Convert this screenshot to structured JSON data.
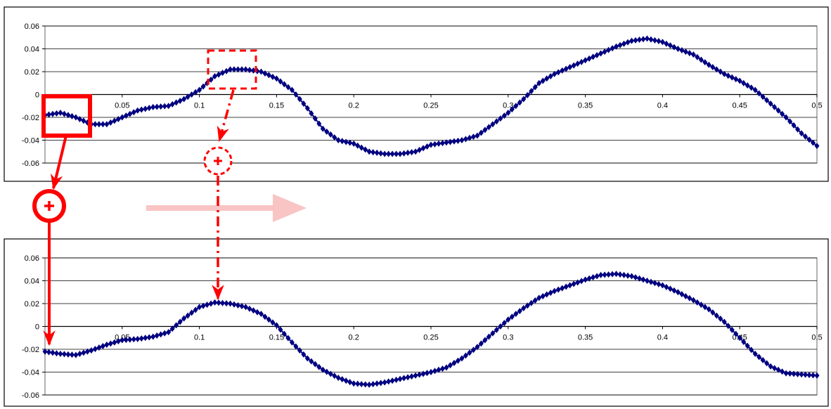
{
  "chart_data": [
    {
      "type": "line",
      "title": "",
      "xlabel": "",
      "ylabel": "",
      "xlim": [
        0,
        0.5
      ],
      "ylim": [
        -0.06,
        0.06
      ],
      "x_ticks": [
        "0.05",
        "0.1",
        "0.15",
        "0.2",
        "0.25",
        "0.3",
        "0.35",
        "0.4",
        "0.45",
        "0.5"
      ],
      "y_ticks": [
        "0.06",
        "0.04",
        "0.02",
        "0",
        "-0.02",
        "-0.04",
        "-0.06"
      ],
      "grid": true,
      "legend": "none",
      "series": [
        {
          "color": "#000080",
          "marker": "diamond",
          "x": [
            0.0,
            0.01,
            0.02,
            0.03,
            0.04,
            0.05,
            0.06,
            0.07,
            0.08,
            0.09,
            0.1,
            0.11,
            0.12,
            0.13,
            0.14,
            0.15,
            0.16,
            0.17,
            0.18,
            0.19,
            0.2,
            0.21,
            0.22,
            0.23,
            0.24,
            0.25,
            0.26,
            0.27,
            0.28,
            0.29,
            0.3,
            0.31,
            0.32,
            0.33,
            0.34,
            0.35,
            0.36,
            0.37,
            0.38,
            0.39,
            0.4,
            0.41,
            0.42,
            0.43,
            0.44,
            0.45,
            0.46,
            0.47,
            0.48,
            0.49,
            0.5
          ],
          "y": [
            -0.018,
            -0.016,
            -0.02,
            -0.026,
            -0.026,
            -0.02,
            -0.014,
            -0.011,
            -0.01,
            -0.004,
            0.004,
            0.016,
            0.022,
            0.022,
            0.02,
            0.014,
            0.004,
            -0.012,
            -0.03,
            -0.04,
            -0.043,
            -0.05,
            -0.052,
            -0.052,
            -0.05,
            -0.044,
            -0.042,
            -0.04,
            -0.036,
            -0.026,
            -0.016,
            -0.004,
            0.01,
            0.018,
            0.024,
            0.03,
            0.036,
            0.042,
            0.047,
            0.049,
            0.046,
            0.04,
            0.035,
            0.026,
            0.018,
            0.012,
            0.004,
            -0.008,
            -0.02,
            -0.034,
            -0.045
          ]
        }
      ]
    },
    {
      "type": "line",
      "title": "",
      "xlabel": "",
      "ylabel": "",
      "xlim": [
        0,
        0.5
      ],
      "ylim": [
        -0.06,
        0.06
      ],
      "x_ticks": [
        "0.05",
        "0.1",
        "0.15",
        "0.2",
        "0.25",
        "0.3",
        "0.35",
        "0.4",
        "0.45",
        "0.5"
      ],
      "y_ticks": [
        "0.06",
        "0.04",
        "0.02",
        "0",
        "-0.02",
        "-0.04",
        "-0.06"
      ],
      "grid": true,
      "legend": "none",
      "series": [
        {
          "color": "#000080",
          "marker": "diamond",
          "x": [
            0.0,
            0.01,
            0.02,
            0.03,
            0.04,
            0.05,
            0.06,
            0.07,
            0.08,
            0.09,
            0.1,
            0.11,
            0.12,
            0.13,
            0.14,
            0.15,
            0.16,
            0.17,
            0.18,
            0.19,
            0.2,
            0.21,
            0.22,
            0.23,
            0.24,
            0.25,
            0.26,
            0.27,
            0.28,
            0.29,
            0.3,
            0.31,
            0.32,
            0.33,
            0.34,
            0.35,
            0.36,
            0.37,
            0.38,
            0.39,
            0.4,
            0.41,
            0.42,
            0.43,
            0.44,
            0.45,
            0.46,
            0.47,
            0.48,
            0.49,
            0.5
          ],
          "y": [
            -0.022,
            -0.024,
            -0.025,
            -0.021,
            -0.016,
            -0.012,
            -0.011,
            -0.009,
            -0.005,
            0.007,
            0.017,
            0.021,
            0.02,
            0.017,
            0.011,
            0.001,
            -0.014,
            -0.028,
            -0.038,
            -0.045,
            -0.05,
            -0.051,
            -0.049,
            -0.046,
            -0.043,
            -0.04,
            -0.036,
            -0.028,
            -0.018,
            -0.006,
            0.006,
            0.016,
            0.025,
            0.031,
            0.036,
            0.041,
            0.045,
            0.046,
            0.044,
            0.04,
            0.036,
            0.03,
            0.023,
            0.015,
            0.004,
            -0.01,
            -0.024,
            -0.035,
            -0.041,
            -0.042,
            -0.043
          ]
        }
      ]
    }
  ],
  "colors": {
    "series": "#000080",
    "annotation": "#ff0000",
    "arrow_light": "#f9c4c4",
    "grid": "#000000",
    "plot_border": "#808080"
  },
  "annotations": {
    "solid_box_icon": "add-circle-icon",
    "dashed_box_icon": "add-circle-dashed-icon",
    "center_arrow": "right-arrow-icon"
  }
}
